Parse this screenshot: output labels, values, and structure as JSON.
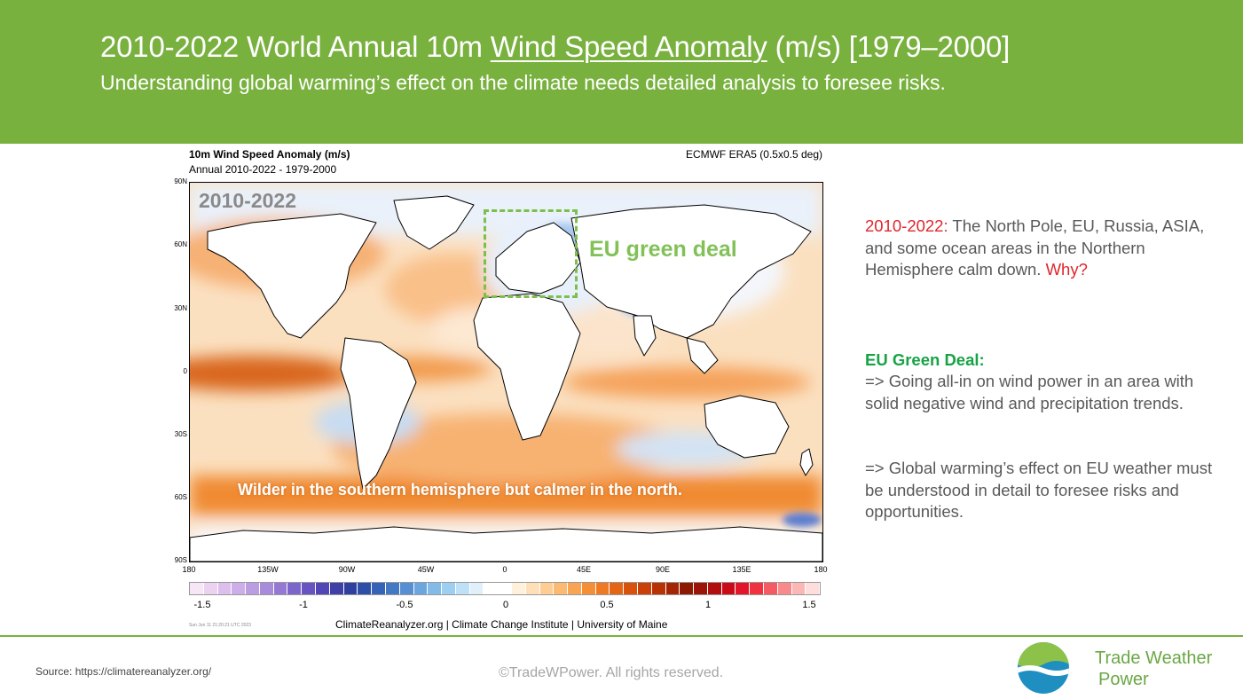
{
  "header": {
    "title_pre": "2010-2022 World Annual 10m ",
    "title_link": "Wind Speed Anomaly",
    "title_post": " (m/s) [1979–2000]",
    "subtitle": "Understanding global warming’s effect on the climate needs detailed analysis to foresee risks."
  },
  "figure": {
    "title": "10m Wind Speed Anomaly (m/s)",
    "subtitle": "Annual 2010-2022 - 1979-2000",
    "source": "ECMWF ERA5 (0.5x0.5 deg)",
    "y_labels": [
      "90N",
      "60N",
      "30N",
      "0",
      "30S",
      "60S",
      "90S"
    ],
    "x_labels": [
      "180",
      "135W",
      "90W",
      "45W",
      "0",
      "45E",
      "90E",
      "135E",
      "180"
    ],
    "colorbar_labels": [
      "-1.5",
      "-1",
      "-0.5",
      "0",
      "0.5",
      "1",
      "1.5"
    ],
    "stamp": "Sun Jun 11 21:20:21 UTC 2023",
    "credit": "ClimateReanalyzer.org | Climate Change Institute | University of Maine",
    "colorbar_colors": [
      "#f6e6f6",
      "#ead2f0",
      "#dcbfec",
      "#cdaee8",
      "#bb9de2",
      "#a98bdb",
      "#9478d3",
      "#7d66cb",
      "#6754c0",
      "#5245b5",
      "#3f3fa8",
      "#2f3f9e",
      "#2d4fa8",
      "#3563b6",
      "#4379c4",
      "#5690d2",
      "#6ba6de",
      "#83bbe8",
      "#9ecff0",
      "#bde1f7",
      "#dff0fb",
      "#ffffff",
      "#ffffff",
      "#fff1dc",
      "#fee0b8",
      "#fdcd93",
      "#fbb971",
      "#f8a452",
      "#f48f38",
      "#ee7a24",
      "#e46516",
      "#d9520d",
      "#c94108",
      "#b73205",
      "#a32503",
      "#8c1a03",
      "#9c1408",
      "#b10e0f",
      "#c90b18",
      "#e2162a",
      "#f0323e",
      "#f55b62",
      "#f98a8c",
      "#fbb7b5",
      "#fddedc"
    ],
    "annotations": {
      "period_label": "2010-2022",
      "eu_label": "EU green deal",
      "caption": "Wilder in the southern hemisphere but calmer in the north."
    }
  },
  "side": {
    "p1_red": "2010-2022:",
    "p1_text": " The North Pole, EU, Russia, ASIA, and some ocean areas in the Northern Hemisphere calm down. ",
    "p1_why": "Why?",
    "p2_heading": "EU Green Deal:",
    "p2_text": "=> Going all-in on wind power in an area with solid negative wind and precipitation trends.",
    "p3_text": "=> Global warming’s effect on EU weather must be understood in detail to foresee risks and opportunities."
  },
  "footer": {
    "source": "Source: https://climatereanalyzer.org/",
    "copyright": "©TradeWPower. All rights reserved.",
    "brand_line1": "Trade Weather",
    "brand_line2": "Power"
  }
}
